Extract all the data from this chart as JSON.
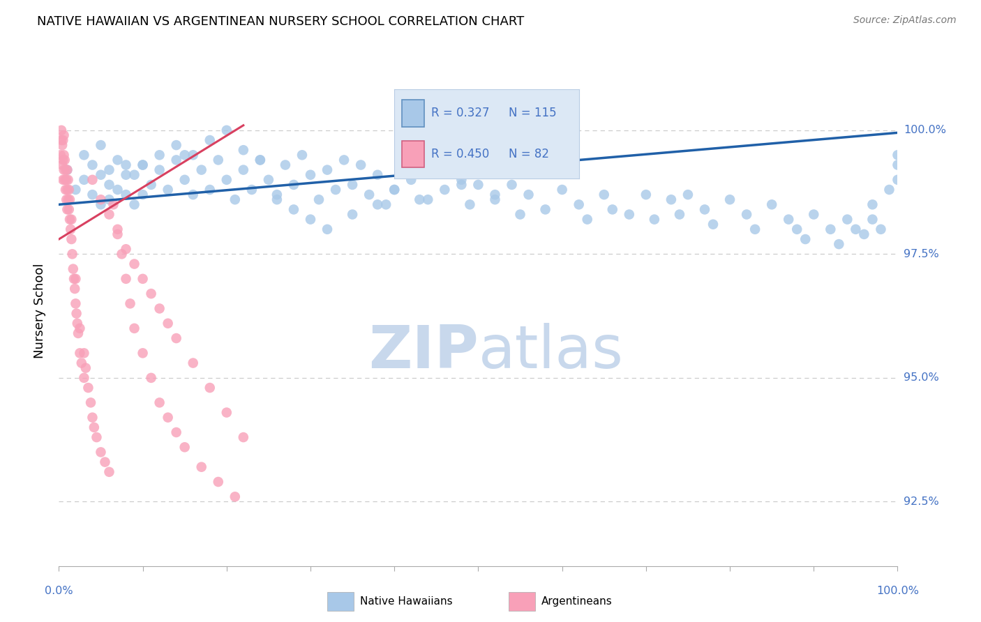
{
  "title": "NATIVE HAWAIIAN VS ARGENTINEAN NURSERY SCHOOL CORRELATION CHART",
  "source": "Source: ZipAtlas.com",
  "ylabel": "Nursery School",
  "ytick_labels": [
    "92.5%",
    "95.0%",
    "97.5%",
    "100.0%"
  ],
  "ytick_values": [
    92.5,
    95.0,
    97.5,
    100.0
  ],
  "xlim": [
    0.0,
    100.0
  ],
  "ylim": [
    91.2,
    101.5
  ],
  "legend_r1": "R = 0.327",
  "legend_n1": "N = 115",
  "legend_r2": "R = 0.450",
  "legend_n2": "N = 82",
  "blue_fill_color": "#a8c8e8",
  "blue_line_color": "#2060a8",
  "pink_fill_color": "#f8a0b8",
  "pink_line_color": "#d84060",
  "axis_label_color": "#4472c4",
  "grid_color": "#cccccc",
  "legend_bg_color": "#dce8f5",
  "watermark_color": "#dce8f5",
  "blue_scatter_x": [
    1,
    2,
    3,
    3,
    4,
    4,
    5,
    5,
    5,
    6,
    6,
    7,
    7,
    8,
    8,
    9,
    9,
    10,
    10,
    11,
    12,
    13,
    14,
    15,
    15,
    16,
    17,
    18,
    19,
    20,
    21,
    22,
    23,
    24,
    25,
    26,
    27,
    28,
    29,
    30,
    31,
    32,
    33,
    34,
    35,
    36,
    37,
    38,
    39,
    40,
    42,
    43,
    45,
    46,
    48,
    49,
    50,
    52,
    54,
    55,
    56,
    58,
    60,
    62,
    63,
    65,
    66,
    68,
    70,
    71,
    73,
    74,
    75,
    77,
    78,
    80,
    82,
    83,
    85,
    87,
    88,
    89,
    90,
    92,
    93,
    94,
    95,
    96,
    97,
    97,
    98,
    99,
    100,
    100,
    100,
    6,
    8,
    10,
    12,
    14,
    16,
    18,
    20,
    22,
    24,
    26,
    28,
    30,
    32,
    35,
    38,
    40,
    44,
    48,
    52
  ],
  "blue_scatter_y": [
    99.2,
    98.8,
    99.0,
    99.5,
    98.7,
    99.3,
    98.5,
    99.1,
    99.7,
    98.6,
    99.2,
    98.8,
    99.4,
    98.7,
    99.3,
    98.5,
    99.1,
    98.7,
    99.3,
    98.9,
    99.2,
    98.8,
    99.4,
    99.0,
    99.5,
    98.7,
    99.2,
    98.8,
    99.4,
    99.0,
    98.6,
    99.2,
    98.8,
    99.4,
    99.0,
    98.7,
    99.3,
    98.9,
    99.5,
    99.1,
    98.6,
    99.2,
    98.8,
    99.4,
    98.9,
    99.3,
    98.7,
    99.1,
    98.5,
    98.8,
    99.0,
    98.6,
    99.2,
    98.8,
    99.0,
    98.5,
    98.9,
    98.6,
    98.9,
    98.3,
    98.7,
    98.4,
    98.8,
    98.5,
    98.2,
    98.7,
    98.4,
    98.3,
    98.7,
    98.2,
    98.6,
    98.3,
    98.7,
    98.4,
    98.1,
    98.6,
    98.3,
    98.0,
    98.5,
    98.2,
    98.0,
    97.8,
    98.3,
    98.0,
    97.7,
    98.2,
    98.0,
    97.9,
    98.5,
    98.2,
    98.0,
    98.8,
    99.0,
    99.3,
    99.5,
    98.9,
    99.1,
    99.3,
    99.5,
    99.7,
    99.5,
    99.8,
    100.0,
    99.6,
    99.4,
    98.6,
    98.4,
    98.2,
    98.0,
    98.3,
    98.5,
    98.8,
    98.6,
    98.9,
    98.7
  ],
  "pink_scatter_x": [
    0.2,
    0.3,
    0.3,
    0.4,
    0.4,
    0.5,
    0.5,
    0.5,
    0.6,
    0.6,
    0.6,
    0.7,
    0.7,
    0.8,
    0.8,
    0.9,
    0.9,
    1.0,
    1.0,
    1.0,
    1.1,
    1.1,
    1.2,
    1.2,
    1.3,
    1.3,
    1.4,
    1.5,
    1.5,
    1.6,
    1.7,
    1.8,
    1.9,
    2.0,
    2.0,
    2.1,
    2.2,
    2.3,
    2.5,
    2.5,
    2.7,
    3.0,
    3.0,
    3.2,
    3.5,
    3.8,
    4.0,
    4.2,
    4.5,
    5.0,
    5.5,
    6.0,
    6.5,
    7.0,
    7.5,
    8.0,
    8.5,
    9.0,
    10.0,
    11.0,
    12.0,
    13.0,
    14.0,
    15.0,
    17.0,
    19.0,
    21.0,
    4.0,
    5.0,
    6.0,
    7.0,
    8.0,
    9.0,
    10.0,
    11.0,
    12.0,
    13.0,
    14.0,
    16.0,
    18.0,
    20.0,
    22.0
  ],
  "pink_scatter_y": [
    99.5,
    99.8,
    100.0,
    99.3,
    99.7,
    99.0,
    99.4,
    99.8,
    99.2,
    99.5,
    99.9,
    99.0,
    99.4,
    98.8,
    99.2,
    98.6,
    99.0,
    98.4,
    98.8,
    99.2,
    98.6,
    99.0,
    98.4,
    98.8,
    98.2,
    98.6,
    98.0,
    97.8,
    98.2,
    97.5,
    97.2,
    97.0,
    96.8,
    96.5,
    97.0,
    96.3,
    96.1,
    95.9,
    95.5,
    96.0,
    95.3,
    95.0,
    95.5,
    95.2,
    94.8,
    94.5,
    94.2,
    94.0,
    93.8,
    93.5,
    93.3,
    93.1,
    98.5,
    98.0,
    97.5,
    97.0,
    96.5,
    96.0,
    95.5,
    95.0,
    94.5,
    94.2,
    93.9,
    93.6,
    93.2,
    92.9,
    92.6,
    99.0,
    98.6,
    98.3,
    97.9,
    97.6,
    97.3,
    97.0,
    96.7,
    96.4,
    96.1,
    95.8,
    95.3,
    94.8,
    94.3,
    93.8
  ]
}
